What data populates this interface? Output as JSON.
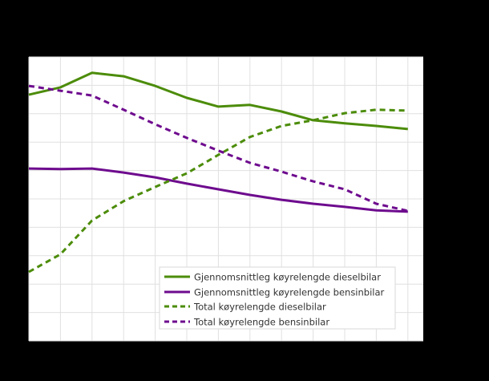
{
  "chart_data": {
    "type": "line",
    "title": "",
    "xlabel": "",
    "ylabel": "",
    "x": [
      1,
      2,
      3,
      4,
      5,
      6,
      7,
      8,
      9,
      10,
      11,
      12,
      13
    ],
    "ylim": [
      0,
      100
    ],
    "grid": true,
    "legend_position": "lower right inside plot",
    "background": "#000000",
    "plot_background": "#ffffff",
    "grid_color": "#e0e0e0",
    "series": [
      {
        "name": "Gjennomsnittleg køyrelengde dieselbil",
        "color": "#4c8c0a",
        "dash": "solid",
        "values": [
          86.7,
          89.3,
          94.4,
          93.2,
          89.8,
          85.6,
          82.5,
          83.1,
          80.8,
          77.7,
          76.6,
          75.7,
          74.6
        ]
      },
      {
        "name": "Gjennomsnittleg køyrelengde bensinbilar",
        "color": "#6e0b8e",
        "dash": "solid",
        "values": [
          60.7,
          60.5,
          60.7,
          59.3,
          57.6,
          55.4,
          53.4,
          51.4,
          49.7,
          48.3,
          47.2,
          46.0,
          45.5
        ]
      },
      {
        "name": "Total køyrelengde dieselbilar",
        "color": "#4c8c0a",
        "dash": "dashed",
        "values": [
          24.3,
          30.5,
          42.4,
          49.2,
          54.2,
          59.0,
          65.5,
          71.8,
          75.7,
          77.7,
          80.2,
          81.4,
          81.1
        ]
      },
      {
        "name": "Total køyrelengde bensinbilar",
        "color": "#6e0b8e",
        "dash": "dashed",
        "values": [
          89.8,
          88.1,
          86.4,
          81.4,
          76.3,
          71.5,
          67.0,
          62.7,
          59.6,
          56.2,
          53.4,
          48.3,
          45.8
        ]
      }
    ]
  },
  "legend": {
    "items": [
      {
        "label": "Gjennomsnittleg køyrelengde dieselbilar",
        "color": "#4c8c0a",
        "dash": "solid"
      },
      {
        "label": "Gjennomsnittleg køyrelengde bensinbilar",
        "color": "#6e0b8e",
        "dash": "solid"
      },
      {
        "label": "Total køyrelengde dieselbilar",
        "color": "#4c8c0a",
        "dash": "dashed"
      },
      {
        "label": "Total køyrelengde bensinbilar",
        "color": "#6e0b8e",
        "dash": "dashed"
      }
    ]
  }
}
